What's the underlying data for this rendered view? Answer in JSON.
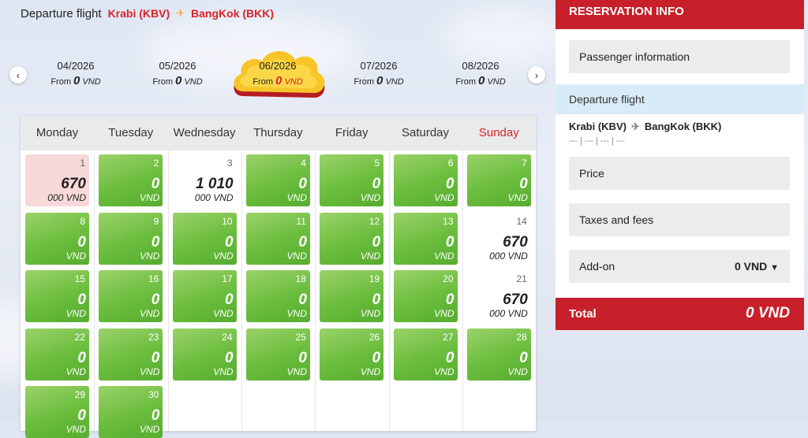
{
  "header": {
    "label": "Departure flight",
    "origin": "Krabi (KBV)",
    "destination": "BangKok (BKK)"
  },
  "months": [
    {
      "month": "04/2026",
      "from": "From",
      "price": "0",
      "unit": "VND",
      "selected": false
    },
    {
      "month": "05/2026",
      "from": "From",
      "price": "0",
      "unit": "VND",
      "selected": false
    },
    {
      "month": "06/2026",
      "from": "From",
      "price": "0",
      "unit": "VND",
      "selected": true
    },
    {
      "month": "07/2026",
      "from": "From",
      "price": "0",
      "unit": "VND",
      "selected": false
    },
    {
      "month": "08/2026",
      "from": "From",
      "price": "0",
      "unit": "VND",
      "selected": false
    }
  ],
  "weekdays": [
    "Monday",
    "Tuesday",
    "Wednesday",
    "Thursday",
    "Friday",
    "Saturday",
    "Sunday"
  ],
  "days": [
    {
      "day": "1",
      "price": "670",
      "unit": "000 VND",
      "style": "pink"
    },
    {
      "day": "2",
      "price": "0",
      "unit": "VND",
      "style": "green"
    },
    {
      "day": "3",
      "price": "1 010",
      "unit": "000 VND",
      "style": "white"
    },
    {
      "day": "4",
      "price": "0",
      "unit": "VND",
      "style": "green"
    },
    {
      "day": "5",
      "price": "0",
      "unit": "VND",
      "style": "green"
    },
    {
      "day": "6",
      "price": "0",
      "unit": "VND",
      "style": "green"
    },
    {
      "day": "7",
      "price": "0",
      "unit": "VND",
      "style": "green"
    },
    {
      "day": "8",
      "price": "0",
      "unit": "VND",
      "style": "green"
    },
    {
      "day": "9",
      "price": "0",
      "unit": "VND",
      "style": "green"
    },
    {
      "day": "10",
      "price": "0",
      "unit": "VND",
      "style": "green"
    },
    {
      "day": "11",
      "price": "0",
      "unit": "VND",
      "style": "green"
    },
    {
      "day": "12",
      "price": "0",
      "unit": "VND",
      "style": "green"
    },
    {
      "day": "13",
      "price": "0",
      "unit": "VND",
      "style": "green"
    },
    {
      "day": "14",
      "price": "670",
      "unit": "000 VND",
      "style": "white"
    },
    {
      "day": "15",
      "price": "0",
      "unit": "VND",
      "style": "green"
    },
    {
      "day": "16",
      "price": "0",
      "unit": "VND",
      "style": "green"
    },
    {
      "day": "17",
      "price": "0",
      "unit": "VND",
      "style": "green"
    },
    {
      "day": "18",
      "price": "0",
      "unit": "VND",
      "style": "green"
    },
    {
      "day": "19",
      "price": "0",
      "unit": "VND",
      "style": "green"
    },
    {
      "day": "20",
      "price": "0",
      "unit": "VND",
      "style": "green"
    },
    {
      "day": "21",
      "price": "670",
      "unit": "000 VND",
      "style": "white"
    },
    {
      "day": "22",
      "price": "0",
      "unit": "VND",
      "style": "green"
    },
    {
      "day": "23",
      "price": "0",
      "unit": "VND",
      "style": "green"
    },
    {
      "day": "24",
      "price": "0",
      "unit": "VND",
      "style": "green"
    },
    {
      "day": "25",
      "price": "0",
      "unit": "VND",
      "style": "green"
    },
    {
      "day": "26",
      "price": "0",
      "unit": "VND",
      "style": "green"
    },
    {
      "day": "27",
      "price": "0",
      "unit": "VND",
      "style": "green"
    },
    {
      "day": "28",
      "price": "0",
      "unit": "VND",
      "style": "green"
    },
    {
      "day": "29",
      "price": "0",
      "unit": "VND",
      "style": "green"
    },
    {
      "day": "30",
      "price": "0",
      "unit": "VND",
      "style": "green"
    }
  ],
  "reservation": {
    "title": "RESERVATION INFO",
    "passenger": "Passenger information",
    "departure": "Departure flight",
    "segment_from": "Krabi (KBV)",
    "segment_to": "BangKok (BKK)",
    "segment_times": "--- | --- | --- | ---",
    "price": "Price",
    "taxes": "Taxes and fees",
    "addon": "Add-on",
    "addon_value": "0 VND",
    "total_label": "Total",
    "total_value": "0 VND"
  },
  "colors": {
    "brand_red": "#c8202a",
    "price_red": "#d8232a",
    "green": "#6abd3d",
    "highlight_yellow": "#f7c52a"
  },
  "icons": {
    "plane": "plane-icon",
    "prev": "chevron-left-icon",
    "next": "chevron-right-icon",
    "caret": "caret-down-icon"
  }
}
